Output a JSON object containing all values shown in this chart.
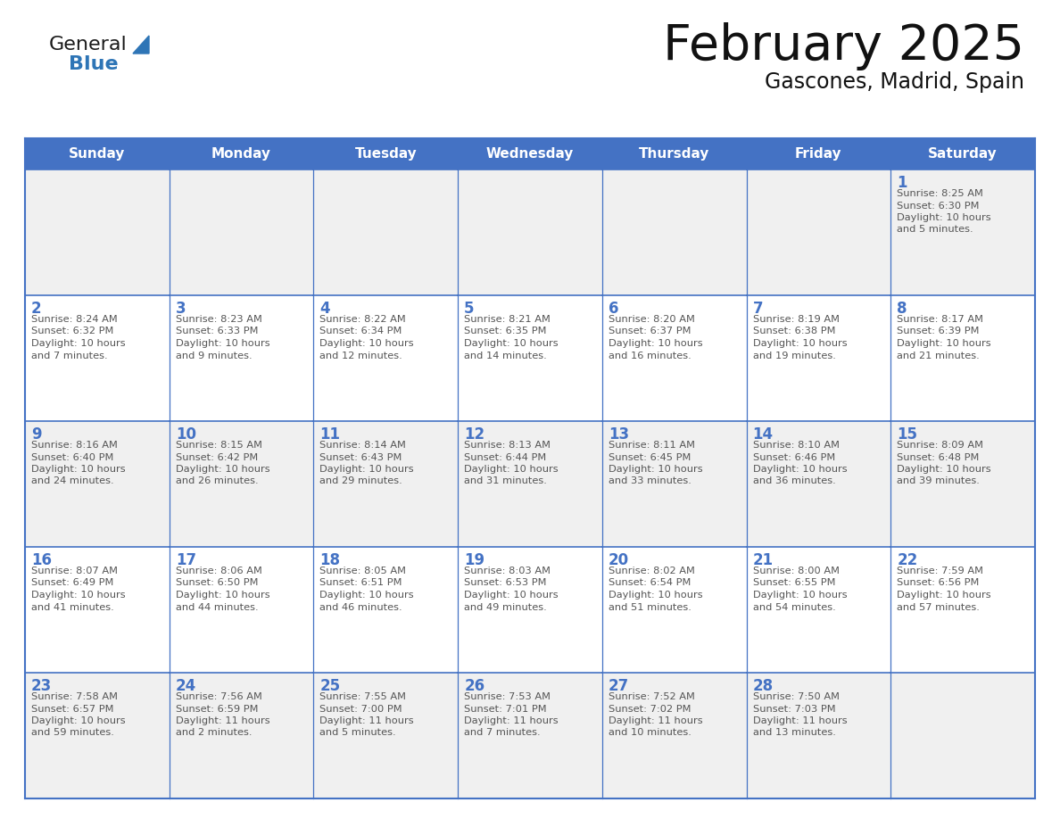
{
  "title": "February 2025",
  "subtitle": "Gascones, Madrid, Spain",
  "header_bg": "#4472C4",
  "header_text_color": "#FFFFFF",
  "cell_bg_light": "#F0F0F0",
  "cell_bg_white": "#FFFFFF",
  "day_names": [
    "Sunday",
    "Monday",
    "Tuesday",
    "Wednesday",
    "Thursday",
    "Friday",
    "Saturday"
  ],
  "grid_line_color": "#4472C4",
  "day_number_color": "#4472C4",
  "info_text_color": "#555555",
  "background_color": "#FFFFFF",
  "calendar_data": [
    [
      null,
      null,
      null,
      null,
      null,
      null,
      {
        "day": 1,
        "sunrise": "8:25 AM",
        "sunset": "6:30 PM",
        "daylight": "10 hours\nand 5 minutes."
      }
    ],
    [
      {
        "day": 2,
        "sunrise": "8:24 AM",
        "sunset": "6:32 PM",
        "daylight": "10 hours\nand 7 minutes."
      },
      {
        "day": 3,
        "sunrise": "8:23 AM",
        "sunset": "6:33 PM",
        "daylight": "10 hours\nand 9 minutes."
      },
      {
        "day": 4,
        "sunrise": "8:22 AM",
        "sunset": "6:34 PM",
        "daylight": "10 hours\nand 12 minutes."
      },
      {
        "day": 5,
        "sunrise": "8:21 AM",
        "sunset": "6:35 PM",
        "daylight": "10 hours\nand 14 minutes."
      },
      {
        "day": 6,
        "sunrise": "8:20 AM",
        "sunset": "6:37 PM",
        "daylight": "10 hours\nand 16 minutes."
      },
      {
        "day": 7,
        "sunrise": "8:19 AM",
        "sunset": "6:38 PM",
        "daylight": "10 hours\nand 19 minutes."
      },
      {
        "day": 8,
        "sunrise": "8:17 AM",
        "sunset": "6:39 PM",
        "daylight": "10 hours\nand 21 minutes."
      }
    ],
    [
      {
        "day": 9,
        "sunrise": "8:16 AM",
        "sunset": "6:40 PM",
        "daylight": "10 hours\nand 24 minutes."
      },
      {
        "day": 10,
        "sunrise": "8:15 AM",
        "sunset": "6:42 PM",
        "daylight": "10 hours\nand 26 minutes."
      },
      {
        "day": 11,
        "sunrise": "8:14 AM",
        "sunset": "6:43 PM",
        "daylight": "10 hours\nand 29 minutes."
      },
      {
        "day": 12,
        "sunrise": "8:13 AM",
        "sunset": "6:44 PM",
        "daylight": "10 hours\nand 31 minutes."
      },
      {
        "day": 13,
        "sunrise": "8:11 AM",
        "sunset": "6:45 PM",
        "daylight": "10 hours\nand 33 minutes."
      },
      {
        "day": 14,
        "sunrise": "8:10 AM",
        "sunset": "6:46 PM",
        "daylight": "10 hours\nand 36 minutes."
      },
      {
        "day": 15,
        "sunrise": "8:09 AM",
        "sunset": "6:48 PM",
        "daylight": "10 hours\nand 39 minutes."
      }
    ],
    [
      {
        "day": 16,
        "sunrise": "8:07 AM",
        "sunset": "6:49 PM",
        "daylight": "10 hours\nand 41 minutes."
      },
      {
        "day": 17,
        "sunrise": "8:06 AM",
        "sunset": "6:50 PM",
        "daylight": "10 hours\nand 44 minutes."
      },
      {
        "day": 18,
        "sunrise": "8:05 AM",
        "sunset": "6:51 PM",
        "daylight": "10 hours\nand 46 minutes."
      },
      {
        "day": 19,
        "sunrise": "8:03 AM",
        "sunset": "6:53 PM",
        "daylight": "10 hours\nand 49 minutes."
      },
      {
        "day": 20,
        "sunrise": "8:02 AM",
        "sunset": "6:54 PM",
        "daylight": "10 hours\nand 51 minutes."
      },
      {
        "day": 21,
        "sunrise": "8:00 AM",
        "sunset": "6:55 PM",
        "daylight": "10 hours\nand 54 minutes."
      },
      {
        "day": 22,
        "sunrise": "7:59 AM",
        "sunset": "6:56 PM",
        "daylight": "10 hours\nand 57 minutes."
      }
    ],
    [
      {
        "day": 23,
        "sunrise": "7:58 AM",
        "sunset": "6:57 PM",
        "daylight": "10 hours\nand 59 minutes."
      },
      {
        "day": 24,
        "sunrise": "7:56 AM",
        "sunset": "6:59 PM",
        "daylight": "11 hours\nand 2 minutes."
      },
      {
        "day": 25,
        "sunrise": "7:55 AM",
        "sunset": "7:00 PM",
        "daylight": "11 hours\nand 5 minutes."
      },
      {
        "day": 26,
        "sunrise": "7:53 AM",
        "sunset": "7:01 PM",
        "daylight": "11 hours\nand 7 minutes."
      },
      {
        "day": 27,
        "sunrise": "7:52 AM",
        "sunset": "7:02 PM",
        "daylight": "11 hours\nand 10 minutes."
      },
      {
        "day": 28,
        "sunrise": "7:50 AM",
        "sunset": "7:03 PM",
        "daylight": "11 hours\nand 13 minutes."
      },
      null
    ]
  ],
  "logo_general_color": "#1a1a1a",
  "logo_blue_color": "#2E75B6",
  "logo_triangle_color": "#2E75B6"
}
